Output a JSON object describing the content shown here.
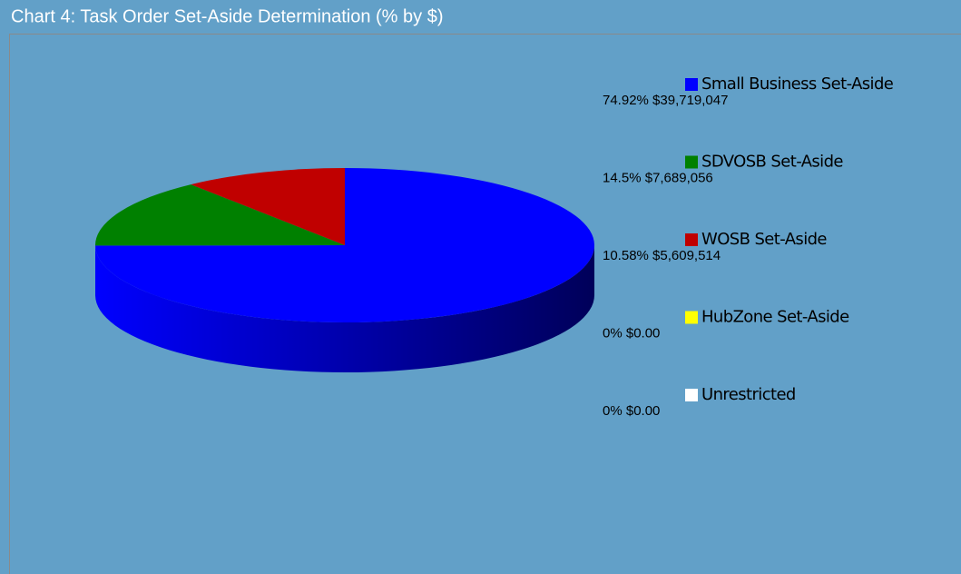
{
  "chart_data": {
    "type": "pie",
    "title": "Chart 4: Task Order Set-Aside Determination (% by $)",
    "categories": [
      "Small Business Set-Aside",
      "SDVOSB Set-Aside",
      "WOSB Set-Aside",
      "HubZone Set-Aside",
      "Unrestricted"
    ],
    "values": [
      74.92,
      14.5,
      10.58,
      0,
      0
    ],
    "value_labels": [
      "74.92% $39,719,047",
      "14.5% $7,689,056",
      "10.58% $5,609,514",
      "0% $0.00",
      "0% $0.00"
    ],
    "colors": [
      "#0000ff",
      "#008000",
      "#c00000",
      "#ffff00",
      "#ffffff"
    ]
  }
}
